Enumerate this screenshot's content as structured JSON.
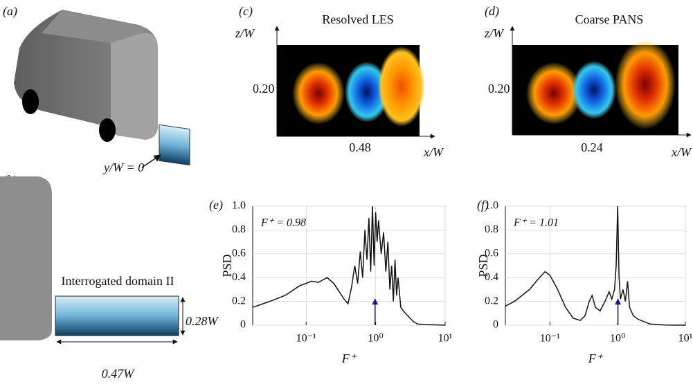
{
  "panels": {
    "a": {
      "label": "(a)",
      "annotation": "y/W = 0"
    },
    "b": {
      "label": "(b)",
      "title": "Interrogated domain II",
      "height_label": "0.28W",
      "width_label": "0.47W"
    },
    "c": {
      "label": "(c)",
      "title": "Resolved LES",
      "ylabel": "z/W",
      "xlabel": "x/W",
      "ytick": "0.20",
      "xtick": "0.48"
    },
    "d": {
      "label": "(d)",
      "title": "Coarse PANS",
      "ylabel": "z/W",
      "xlabel": "x/W",
      "ytick": "0.20",
      "xtick": "0.24"
    }
  },
  "chart_data": [
    {
      "type": "line",
      "panel_label": "(e)",
      "annotation": "F⁺ = 0.98",
      "xlabel": "F⁺",
      "ylabel": "PSD",
      "log_x": true,
      "grid": true,
      "xlim": [
        0.017,
        10
      ],
      "ylim": [
        0,
        1
      ],
      "xticks": [
        {
          "value": 0.1,
          "label": "10⁻¹"
        },
        {
          "value": 1,
          "label": "10⁰"
        },
        {
          "value": 10,
          "label": "10¹"
        }
      ],
      "yticks": [
        0,
        0.2,
        0.4,
        0.6,
        0.8,
        {
          "value": 1,
          "label": "1.0"
        }
      ],
      "arrow_x": 0.98,
      "arrow_color": "#1a1a8c",
      "x": [
        0.017,
        0.03,
        0.05,
        0.08,
        0.12,
        0.15,
        0.2,
        0.25,
        0.3,
        0.35,
        0.4,
        0.45,
        0.5,
        0.55,
        0.6,
        0.65,
        0.7,
        0.75,
        0.8,
        0.85,
        0.9,
        0.95,
        1.0,
        1.05,
        1.1,
        1.2,
        1.3,
        1.4,
        1.5,
        1.6,
        1.7,
        1.8,
        1.9,
        2.0,
        2.1,
        2.3,
        2.5,
        3,
        3.5,
        4,
        5,
        10
      ],
      "series": [
        {
          "color": "#111111",
          "values": [
            0.15,
            0.2,
            0.25,
            0.33,
            0.37,
            0.36,
            0.4,
            0.35,
            0.28,
            0.22,
            0.18,
            0.32,
            0.5,
            0.35,
            0.62,
            0.4,
            0.8,
            0.55,
            0.9,
            0.45,
            1.0,
            0.5,
            0.95,
            0.7,
            0.88,
            0.6,
            0.78,
            0.45,
            0.7,
            0.3,
            0.5,
            0.2,
            0.55,
            0.25,
            0.4,
            0.15,
            0.12,
            0.07,
            0.03,
            0.01,
            0.005,
            0
          ]
        }
      ]
    },
    {
      "type": "line",
      "panel_label": "(f)",
      "annotation": "F⁺ = 1.01",
      "xlabel": "F⁺",
      "ylabel": "PSD",
      "log_x": true,
      "grid": true,
      "xlim": [
        0.022,
        10
      ],
      "ylim": [
        0,
        1
      ],
      "xticks": [
        {
          "value": 0.1,
          "label": "10⁻¹"
        },
        {
          "value": 1,
          "label": "10⁰"
        },
        {
          "value": 10,
          "label": "10¹"
        }
      ],
      "yticks": [
        0,
        0.2,
        0.4,
        0.6,
        0.8,
        {
          "value": 1,
          "label": "1.0"
        }
      ],
      "arrow_x": 1.01,
      "arrow_color": "#1a1a8c",
      "x": [
        0.022,
        0.03,
        0.05,
        0.07,
        0.085,
        0.1,
        0.13,
        0.17,
        0.22,
        0.28,
        0.33,
        0.38,
        0.42,
        0.47,
        0.55,
        0.65,
        0.75,
        0.82,
        0.9,
        0.95,
        1.0,
        1.05,
        1.1,
        1.2,
        1.3,
        1.4,
        1.5,
        1.7,
        2,
        3,
        5,
        10
      ],
      "series": [
        {
          "color": "#111111",
          "values": [
            0.16,
            0.2,
            0.3,
            0.4,
            0.45,
            0.42,
            0.3,
            0.15,
            0.06,
            0.04,
            0.08,
            0.2,
            0.25,
            0.15,
            0.12,
            0.2,
            0.28,
            0.22,
            0.3,
            0.5,
            1.0,
            0.4,
            0.22,
            0.3,
            0.2,
            0.37,
            0.15,
            0.08,
            0.05,
            0.01,
            0.002,
            0
          ]
        }
      ]
    }
  ]
}
